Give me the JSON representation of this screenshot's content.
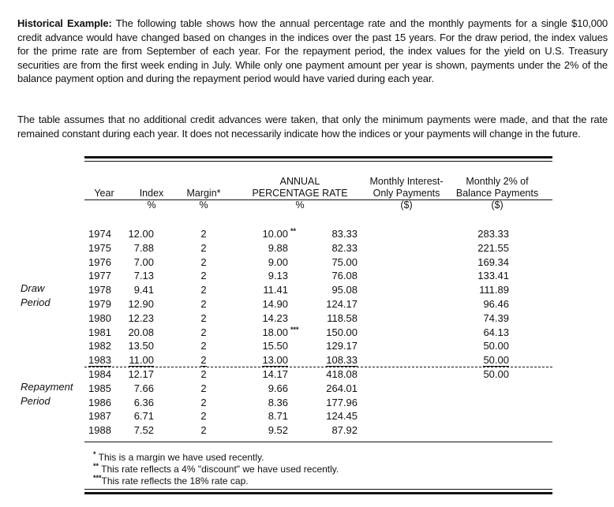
{
  "intro": {
    "lead": "Historical Example:",
    "text": " The following table shows how the annual percentage rate and the monthly payments for a single $10,000 credit advance would have changed based on changes in the indices over the past 15 years. For the draw period, the index values for the prime rate are from September of each year. For the repayment period, the index values for the yield on U.S. Treasury securities are from the first week ending in July. While only one payment amount per year is shown, payments under the 2% of the balance payment option and during the repayment period would have varied during each year.",
    "assumption": "The table assumes that no additional credit advances were taken, that only the minimum payments were made, and that the rate remained constant during each year. It does not necessarily indicate how the indices or your payments will change in the future."
  },
  "table": {
    "headers": {
      "year": "Year",
      "index": "Index",
      "index_unit": "%",
      "margin": "Margin*",
      "margin_unit": "%",
      "apr_1": "ANNUAL",
      "apr_2": "PERCENTAGE RATE",
      "apr_unit": "%",
      "interest_1": "Monthly Interest-",
      "interest_2": "Only Payments",
      "interest_unit": "($)",
      "balance_1": "Monthly 2% of",
      "balance_2": "Balance Payments",
      "balance_unit": "($)"
    },
    "periods": {
      "draw_1": "Draw",
      "draw_2": "Period",
      "repay_1": "Repayment",
      "repay_2": "Period"
    },
    "rows": [
      {
        "year": "1974",
        "index": "12.00",
        "margin": "2",
        "apr": "10.00",
        "note": "**",
        "interest": "83.33",
        "balance": "283.33"
      },
      {
        "year": "1975",
        "index": "7.88",
        "margin": "2",
        "apr": "9.88",
        "note": "",
        "interest": "82.33",
        "balance": "221.55"
      },
      {
        "year": "1976",
        "index": "7.00",
        "margin": "2",
        "apr": "9.00",
        "note": "",
        "interest": "75.00",
        "balance": "169.34"
      },
      {
        "year": "1977",
        "index": "7.13",
        "margin": "2",
        "apr": "9.13",
        "note": "",
        "interest": "76.08",
        "balance": "133.41"
      },
      {
        "year": "1978",
        "index": "9.41",
        "margin": "2",
        "apr": "11.41",
        "note": "",
        "interest": "95.08",
        "balance": "111.89"
      },
      {
        "year": "1979",
        "index": "12.90",
        "margin": "2",
        "apr": "14.90",
        "note": "",
        "interest": "124.17",
        "balance": "96.46"
      },
      {
        "year": "1980",
        "index": "12.23",
        "margin": "2",
        "apr": "14.23",
        "note": "",
        "interest": "118.58",
        "balance": "74.39"
      },
      {
        "year": "1981",
        "index": "20.08",
        "margin": "2",
        "apr": "18.00",
        "note": "***",
        "interest": "150.00",
        "balance": "64.13"
      },
      {
        "year": "1982",
        "index": "13.50",
        "margin": "2",
        "apr": "15.50",
        "note": "",
        "interest": "129.17",
        "balance": "50.00"
      },
      {
        "year": "1983",
        "index": "11.00",
        "margin": "2",
        "apr": "13.00",
        "note": "",
        "interest": "108.33",
        "balance": "50.00"
      },
      {
        "year": "1984",
        "index": "12.17",
        "margin": "2",
        "apr": "14.17",
        "note": "",
        "interest": "418.08",
        "balance": "50.00"
      },
      {
        "year": "1985",
        "index": "7.66",
        "margin": "2",
        "apr": "9.66",
        "note": "",
        "interest": "264.01",
        "balance": ""
      },
      {
        "year": "1986",
        "index": "6.36",
        "margin": "2",
        "apr": "8.36",
        "note": "",
        "interest": "177.96",
        "balance": ""
      },
      {
        "year": "1987",
        "index": "6.71",
        "margin": "2",
        "apr": "8.71",
        "note": "",
        "interest": "124.45",
        "balance": ""
      },
      {
        "year": "1988",
        "index": "7.52",
        "margin": "2",
        "apr": "9.52",
        "note": "",
        "interest": "87.92",
        "balance": ""
      }
    ]
  },
  "footnotes": [
    {
      "mark": "*",
      "text": " This is a margin we have used recently."
    },
    {
      "mark": "**",
      "text": " This rate reflects a 4% \"discount\" we have used recently."
    },
    {
      "mark": "***",
      "text": "This rate reflects the 18% rate cap."
    }
  ]
}
